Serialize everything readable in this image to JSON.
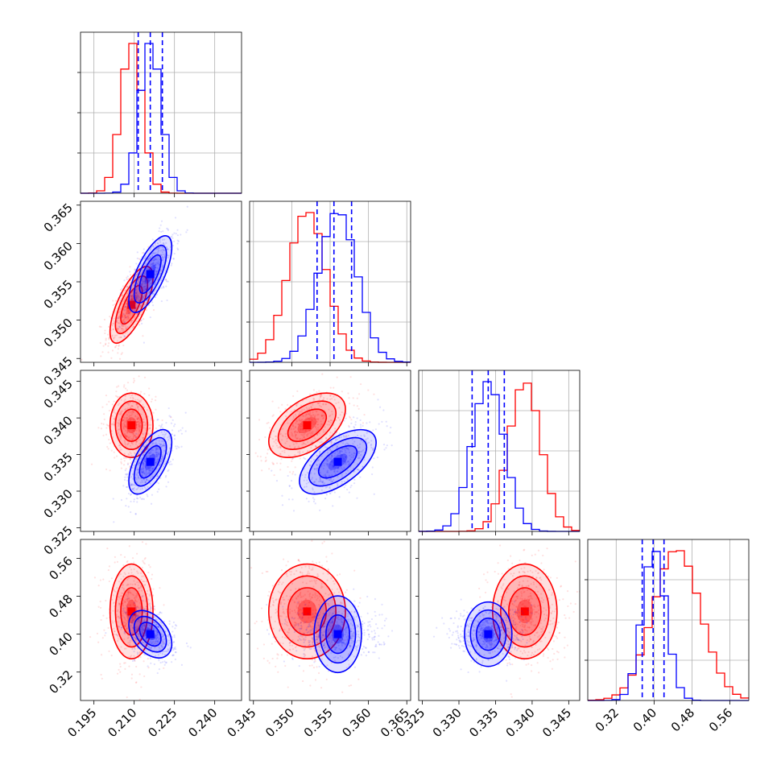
{
  "colors": {
    "red": "#ff0000",
    "blue": "#0000ff"
  },
  "chart_data": {
    "type": "corner",
    "title": "",
    "grid": true,
    "n_params": 4,
    "params": [
      {
        "label": "",
        "range": [
          0.19,
          0.25
        ],
        "ticks": [
          "0.195",
          "0.210",
          "0.225",
          "0.240"
        ],
        "tick_values": [
          0.195,
          0.21,
          0.225,
          0.24
        ]
      },
      {
        "label": "",
        "range": [
          0.3445,
          0.3655
        ],
        "ticks": [
          "0.345",
          "0.350",
          "0.355",
          "0.360",
          "0.365"
        ],
        "tick_values": [
          0.345,
          0.35,
          0.355,
          0.36,
          0.365
        ]
      },
      {
        "label": "",
        "range": [
          0.3245,
          0.3465
        ],
        "ticks": [
          "0.325",
          "0.330",
          "0.335",
          "0.340",
          "0.345"
        ],
        "tick_values": [
          0.325,
          0.33,
          0.335,
          0.34,
          0.345
        ]
      },
      {
        "label": "",
        "range": [
          0.26,
          0.6
        ],
        "ticks": [
          "0.32",
          "0.40",
          "0.48",
          "0.56"
        ],
        "tick_values": [
          0.32,
          0.4,
          0.48,
          0.56
        ]
      }
    ],
    "series": [
      {
        "color": "#ff0000",
        "mean": [
          0.209,
          0.352,
          0.339,
          0.448
        ],
        "sigma": [
          0.004,
          0.0025,
          0.0022,
          0.05
        ],
        "corr": [
          [
            1,
            0.7,
            0,
            0
          ],
          [
            0.7,
            1,
            0.5,
            0
          ],
          [
            0,
            0.5,
            1,
            0
          ],
          [
            0,
            0,
            0,
            1
          ]
        ]
      },
      {
        "color": "#0000ff",
        "mean": [
          0.216,
          0.356,
          0.334,
          0.4
        ],
        "sigma": [
          0.004,
          0.0025,
          0.0022,
          0.025
        ],
        "corr": [
          [
            1,
            0.7,
            0.6,
            -0.4
          ],
          [
            0.7,
            1,
            0.6,
            0
          ],
          [
            0.6,
            0.6,
            1,
            0
          ],
          [
            -0.4,
            0,
            0,
            1
          ]
        ]
      }
    ],
    "quantile_lines": {
      "color": "#0000ff",
      "values": [
        [
          0.2115,
          0.216,
          0.2205
        ],
        [
          0.3533,
          0.3555,
          0.3578
        ],
        [
          0.3318,
          0.334,
          0.3362
        ],
        [
          0.375,
          0.398,
          0.421
        ]
      ]
    }
  }
}
